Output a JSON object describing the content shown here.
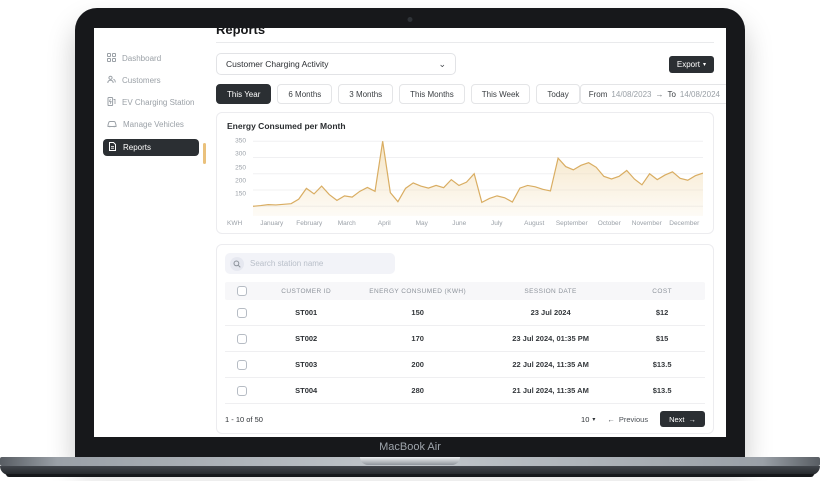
{
  "device": {
    "label": "MacBook Air"
  },
  "page": {
    "title": "Reports"
  },
  "sidebar": {
    "items": [
      {
        "label": "Dashboard",
        "icon": "dashboard-grid-icon",
        "active": false
      },
      {
        "label": "Customers",
        "icon": "customers-icon",
        "active": false
      },
      {
        "label": "EV Charging Station",
        "icon": "charging-station-icon",
        "active": false
      },
      {
        "label": "Manage Vehicles",
        "icon": "vehicle-icon",
        "active": false
      },
      {
        "label": "Reports",
        "icon": "reports-icon",
        "active": true
      }
    ]
  },
  "toolbar": {
    "report_type": "Customer Charging Activity",
    "export_label": "Export"
  },
  "filters": {
    "options": [
      "This Year",
      "6 Months",
      "3 Months",
      "This Months",
      "This Week",
      "Today"
    ],
    "active_option": "This Year",
    "date_range": {
      "from_label": "From",
      "from_value": "14/08/2023",
      "to_label": "To",
      "to_value": "14/08/2024"
    }
  },
  "chart_data": {
    "type": "area",
    "title": "Energy Consumed per Month",
    "unit": "KWH",
    "ylabel": "KWH",
    "x_labels": [
      "January",
      "February",
      "March",
      "April",
      "May",
      "June",
      "July",
      "August",
      "September",
      "October",
      "November",
      "December"
    ],
    "yticks": [
      350,
      300,
      250,
      200,
      150
    ],
    "ylim": [
      120,
      360
    ],
    "grid": true,
    "legend": false,
    "line_color": "#d9ad62",
    "fill_color": "#f2ddb4",
    "values": [
      150,
      152,
      155,
      154,
      156,
      158,
      172,
      205,
      188,
      212,
      186,
      168,
      182,
      178,
      196,
      208,
      196,
      350,
      192,
      164,
      205,
      222,
      212,
      206,
      214,
      207,
      232,
      214,
      224,
      250,
      162,
      174,
      182,
      176,
      163,
      206,
      214,
      210,
      202,
      197,
      298,
      272,
      262,
      276,
      284,
      270,
      242,
      234,
      242,
      260,
      234,
      216,
      250,
      232,
      246,
      256,
      236,
      230,
      244,
      252
    ]
  },
  "table": {
    "search_placeholder": "Search station name",
    "columns": [
      "CUSTOMER ID",
      "ENERGY CONSUMED (KWH)",
      "SESSION DATE",
      "COST"
    ],
    "rows": [
      {
        "customer_id": "ST001",
        "energy_kwh": "150",
        "session_date": "23 Jul 2024",
        "cost": "$12"
      },
      {
        "customer_id": "ST002",
        "energy_kwh": "170",
        "session_date": "23 Jul 2024, 01:35 PM",
        "cost": "$15"
      },
      {
        "customer_id": "ST003",
        "energy_kwh": "200",
        "session_date": "22 Jul 2024, 11:35 AM",
        "cost": "$13.5"
      },
      {
        "customer_id": "ST004",
        "energy_kwh": "280",
        "session_date": "21 Jul 2024, 11:35 AM",
        "cost": "$13.5"
      }
    ]
  },
  "pagination": {
    "range_label": "1 - 10 of 50",
    "page_size": "10",
    "previous_label": "Previous",
    "next_label": "Next"
  },
  "icons": {
    "chevron_down": "⌄",
    "caret_down": "▾",
    "arrow_right": "→",
    "arrow_left": "←"
  },
  "colors": {
    "accent_line": "#d9ad62",
    "dark": "#2b2f33",
    "sidebar_indicator": "#eac17c",
    "grid_line": "#f0f0f2"
  }
}
